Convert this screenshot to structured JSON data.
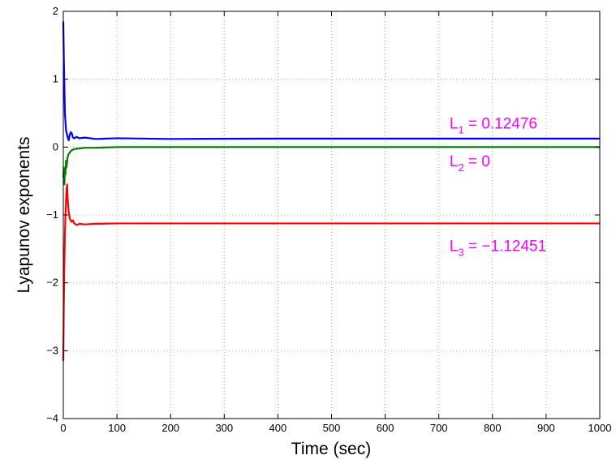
{
  "chart_data": {
    "type": "line",
    "xlabel": "Time (sec)",
    "ylabel": "Lyapunov exponents",
    "xlim": [
      0,
      1000
    ],
    "ylim": [
      -4,
      2
    ],
    "xticks": [
      0,
      100,
      200,
      300,
      400,
      500,
      600,
      700,
      800,
      900,
      1000
    ],
    "yticks": [
      -4,
      -3,
      -2,
      -1,
      0,
      1,
      2
    ],
    "grid": true,
    "series": [
      {
        "color": "#0000ff",
        "x": [
          0,
          1,
          2,
          3,
          5,
          8,
          10,
          12,
          14,
          16,
          18,
          20,
          25,
          30,
          40,
          60,
          100,
          200,
          400,
          600,
          800,
          1000
        ],
        "y": [
          1.85,
          1.3,
          0.9,
          0.5,
          0.25,
          0.15,
          0.1,
          0.18,
          0.22,
          0.2,
          0.14,
          0.13,
          0.15,
          0.13,
          0.14,
          0.12,
          0.13,
          0.12,
          0.125,
          0.125,
          0.125,
          0.125
        ]
      },
      {
        "color": "#008000",
        "x": [
          0,
          1,
          2,
          3,
          4,
          5,
          6,
          8,
          10,
          15,
          20,
          30,
          40,
          60,
          100,
          200,
          400,
          600,
          800,
          1000
        ],
        "y": [
          -0.45,
          -0.3,
          -0.55,
          -0.35,
          -0.4,
          -0.2,
          -0.3,
          -0.15,
          -0.1,
          -0.05,
          -0.03,
          -0.02,
          -0.01,
          -0.01,
          0,
          0,
          0,
          0,
          0,
          0
        ]
      },
      {
        "color": "#ff0000",
        "x": [
          0,
          1,
          2,
          3,
          4,
          5,
          6,
          7,
          8,
          10,
          12,
          15,
          18,
          20,
          25,
          30,
          40,
          60,
          100,
          200,
          400,
          600,
          800,
          1000
        ],
        "y": [
          -3.15,
          -2.3,
          -1.7,
          -1.3,
          -1.0,
          -0.8,
          -0.65,
          -0.55,
          -0.75,
          -0.95,
          -1.05,
          -1.1,
          -1.08,
          -1.12,
          -1.15,
          -1.13,
          -1.14,
          -1.13,
          -1.125,
          -1.125,
          -1.125,
          -1.125,
          -1.125,
          -1.125
        ]
      }
    ],
    "annotations": [
      {
        "id": "L1",
        "main": "L",
        "sub": "1",
        "rest": " = 0.12476",
        "x": 720,
        "y": 0.27
      },
      {
        "id": "L2",
        "main": "L",
        "sub": "2",
        "rest": " = 0",
        "x": 720,
        "y": -0.28
      },
      {
        "id": "L3",
        "main": "L",
        "sub": "3",
        "rest": " = −1.12451",
        "x": 720,
        "y": -1.53
      }
    ],
    "annotation_color": "#ff00ff"
  }
}
